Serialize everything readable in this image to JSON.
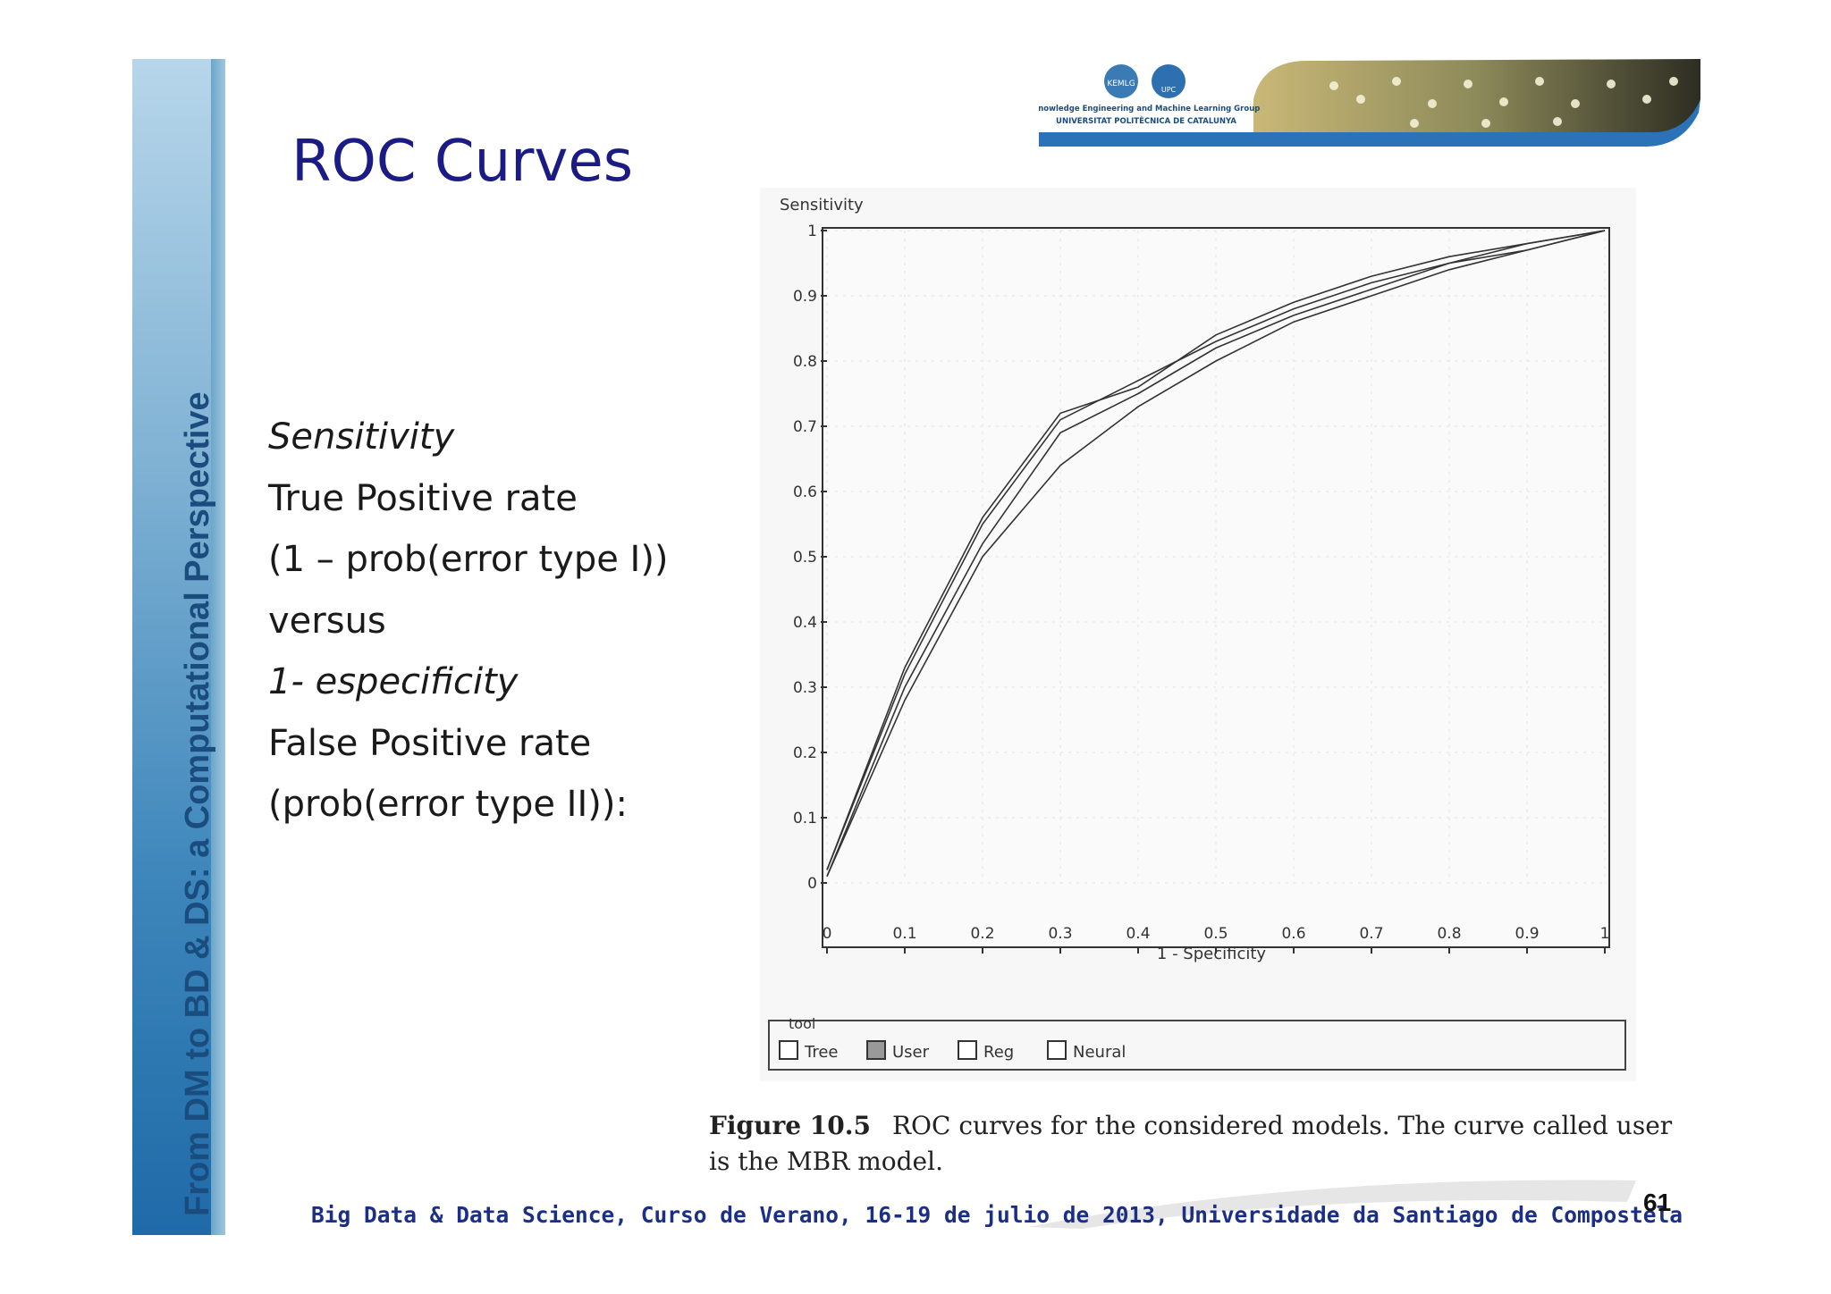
{
  "slide": {
    "title": "ROC Curves",
    "sidebar_text": "From DM to BD & DS: a Computational Perspective",
    "bullets": [
      {
        "text": "Sensitivity",
        "italic": true
      },
      {
        "text": "True Positive rate",
        "italic": false
      },
      {
        "text": "(1 – prob(error type I))",
        "italic": false
      },
      {
        "text": "versus",
        "italic": false
      },
      {
        "text": "1- especificity",
        "italic": true
      },
      {
        "text": "False Positive rate",
        "italic": false
      },
      {
        "text": "(prob(error type II)):",
        "italic": false
      }
    ],
    "logo_line1": "Knowledge Engineering and Machine Learning Group",
    "logo_line2": "UNIVERSITAT POLITÈCNICA DE CATALUNYA",
    "logo_badge1": "KEMLG",
    "logo_badge2": "UPC",
    "caption_label": "Figure 10.5",
    "caption_text": "ROC curves for the considered models. The curve called user is the MBR model.",
    "footer": "Big Data & Data Science, Curso de Verano, 16-19 de julio de 2013, Universidade da Santiago de Compostela",
    "page_number": "61"
  },
  "colors": {
    "title": "#1b1b86",
    "footer": "#1b2f86",
    "sidebar_text": "#1a4c7e",
    "curve": "#333333"
  },
  "chart_data": {
    "type": "line",
    "title": "",
    "ylabel": "Sensitivity",
    "xlabel": "1 - Specificity",
    "xlim": [
      0,
      1
    ],
    "ylim": [
      0,
      1
    ],
    "xticks": [
      "0",
      "0.1",
      "0.2",
      "0.3",
      "0.4",
      "0.5",
      "0.6",
      "0.7",
      "0.8",
      "0.9",
      "1"
    ],
    "yticks": [
      "0",
      "0.1",
      "0.2",
      "0.3",
      "0.4",
      "0.5",
      "0.6",
      "0.7",
      "0.8",
      "0.9",
      "1"
    ],
    "legend_title": "tool",
    "series": [
      {
        "name": "Tree",
        "x": [
          0,
          0.1,
          0.2,
          0.3,
          0.4,
          0.5,
          0.6,
          0.7,
          0.8,
          0.9,
          1
        ],
        "y": [
          0.02,
          0.32,
          0.55,
          0.71,
          0.77,
          0.83,
          0.88,
          0.92,
          0.95,
          0.98,
          1
        ]
      },
      {
        "name": "User",
        "x": [
          0,
          0.1,
          0.2,
          0.3,
          0.4,
          0.5,
          0.6,
          0.7,
          0.8,
          0.9,
          1
        ],
        "y": [
          0.02,
          0.33,
          0.56,
          0.72,
          0.76,
          0.84,
          0.89,
          0.93,
          0.96,
          0.98,
          1
        ]
      },
      {
        "name": "Reg",
        "x": [
          0,
          0.1,
          0.2,
          0.3,
          0.4,
          0.5,
          0.6,
          0.7,
          0.8,
          0.9,
          1
        ],
        "y": [
          0.01,
          0.28,
          0.5,
          0.64,
          0.73,
          0.8,
          0.86,
          0.9,
          0.94,
          0.97,
          1
        ]
      },
      {
        "name": "Neural",
        "x": [
          0,
          0.1,
          0.2,
          0.3,
          0.4,
          0.5,
          0.6,
          0.7,
          0.8,
          0.9,
          1
        ],
        "y": [
          0.01,
          0.3,
          0.52,
          0.69,
          0.75,
          0.82,
          0.87,
          0.91,
          0.95,
          0.97,
          1
        ]
      }
    ]
  }
}
